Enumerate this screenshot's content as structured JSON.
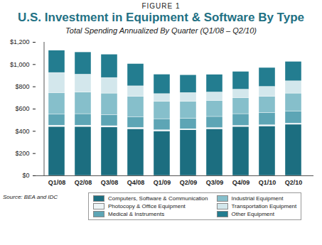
{
  "chart_data": {
    "type": "bar",
    "figure_label": "FIGURE 1",
    "title": "U.S. Investment in Equipment & Software By Type",
    "subtitle": "Total Spending Annualized By Quarter (Q1/08 – Q2/10)",
    "source": "Source: BEA and IDC",
    "stacked": true,
    "grid": false,
    "categories": [
      "Q1/08",
      "Q2/08",
      "Q3/08",
      "Q4/08",
      "Q1/09",
      "Q2/09",
      "Q3/09",
      "Q4/09",
      "Q1/10",
      "Q2/10"
    ],
    "series": [
      {
        "name": "Computers, Software & Communication",
        "color": "#1c6e80",
        "values": [
          440,
          440,
          435,
          420,
          400,
          410,
          420,
          440,
          445,
          460
        ]
      },
      {
        "name": "Photocopy & Office Equipment",
        "color": "#eef5f7",
        "values": [
          12,
          12,
          12,
          12,
          10,
          10,
          10,
          10,
          10,
          10
        ]
      },
      {
        "name": "Medical & Instruments",
        "color": "#5da5b5",
        "values": [
          98,
          103,
          98,
          93,
          100,
          95,
          100,
          105,
          110,
          110
        ]
      },
      {
        "name": "Industrial Equipment",
        "color": "#86bfcb",
        "values": [
          195,
          195,
          195,
          185,
          155,
          150,
          145,
          145,
          145,
          160
        ]
      },
      {
        "name": "Transportation Equipment",
        "color": "#d3e7ec",
        "values": [
          180,
          160,
          140,
          95,
          70,
          80,
          75,
          75,
          90,
          110
        ]
      },
      {
        "name": "Other Equipment",
        "color": "#237d90",
        "values": [
          200,
          200,
          210,
          200,
          175,
          160,
          158,
          160,
          170,
          175
        ]
      }
    ],
    "ylim": [
      0,
      1200
    ],
    "yticks": [
      {
        "value": 0,
        "label": "$0"
      },
      {
        "value": 200,
        "label": "$200"
      },
      {
        "value": 400,
        "label": "$400"
      },
      {
        "value": 600,
        "label": "$600"
      },
      {
        "value": 800,
        "label": "$800"
      },
      {
        "value": 1000,
        "label": "$1,000"
      },
      {
        "value": 1200,
        "label": "$1,200"
      }
    ]
  }
}
